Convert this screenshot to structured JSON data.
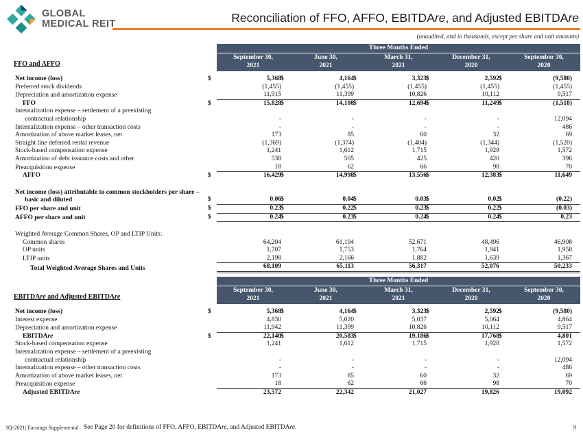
{
  "currency_symbol": "$",
  "colors": {
    "table_header_bg": "#46566c",
    "accent_rule": "#e87e2b",
    "logo_teal": "#2fa8a2",
    "logo_teal_dark": "#1f8f8a",
    "logo_navy": "#1c3e6e",
    "logo_orange": "#f4a335"
  },
  "header": {
    "logo_line1": "GLOBAL",
    "logo_line2": "MEDICAL REIT",
    "title": "Reconciliation of FFO, AFFO, EBITDAre, and Adjusted EBITDAre",
    "units_note": "(unaudited, and in thousands, except per share and unit amounts)"
  },
  "footer": {
    "left_label": "3Q-2021|  Earnings Supplemental",
    "note": "See Page 20 for definitions  of FFO, AFFO, EBITDAre,  and Adjusted EBITDAre.",
    "page_number": "9"
  },
  "tables": [
    {
      "section_label": "FFO and AFFO",
      "header_span": "Three Months Ended",
      "columns": [
        {
          "line1": "September 30,",
          "line2": "2021"
        },
        {
          "line1": "June 30,",
          "line2": "2021"
        },
        {
          "line1": "March 31,",
          "line2": "2021"
        },
        {
          "line1": "December 31,",
          "line2": "2020"
        },
        {
          "line1": "September 30,",
          "line2": "2020"
        }
      ],
      "rows": [
        {
          "label": "Net income (loss)",
          "bold": true,
          "dollar": true,
          "values": [
            "5,368",
            "4,164",
            "3,323",
            "2,592",
            "(9,580)"
          ]
        },
        {
          "label": "Preferred stock dividends",
          "values": [
            "(1,455)",
            "(1,455)",
            "(1,455)",
            "(1,455)",
            "(1,455)"
          ]
        },
        {
          "label": "Depreciation and amortization  expense",
          "rule": "under",
          "values": [
            "11,915",
            "11,399",
            "10,826",
            "10,112",
            "9,517"
          ]
        },
        {
          "label": "FFO",
          "bold": true,
          "indent": 1,
          "dollar": true,
          "values": [
            "15,828",
            "14,108",
            "12,694",
            "11,249",
            "(1,518)"
          ]
        },
        {
          "label": "Internalization  expense – settlement of a preexisting",
          "label2": "contractual relationship",
          "values": [
            "-",
            "-",
            "-",
            "-",
            "12,094"
          ]
        },
        {
          "label": "Internalization  expense – other transaction costs",
          "values": [
            "-",
            "-",
            "-",
            "-",
            "486"
          ]
        },
        {
          "label": "Amortization  of above market leases, net",
          "values": [
            "173",
            "85",
            "60",
            "32",
            "69"
          ]
        },
        {
          "label": "Straight line  deferred rental revenue",
          "values": [
            "(1,369)",
            "(1,374)",
            "(1,404)",
            "(1,344)",
            "(1,520)"
          ]
        },
        {
          "label": "Stock-based compensation  expense",
          "values": [
            "1,241",
            "1,612",
            "1,715",
            "1,928",
            "1,572"
          ]
        },
        {
          "label": "Amortization  of debt issuance costs and other",
          "values": [
            "538",
            "505",
            "425",
            "420",
            "396"
          ]
        },
        {
          "label": "Preacquisition  expense",
          "rule": "under",
          "values": [
            "18",
            "62",
            "66",
            "98",
            "70"
          ]
        },
        {
          "label": "AFFO",
          "bold": true,
          "indent": 1,
          "dollar": true,
          "values": [
            "16,429",
            "14,998",
            "13,556",
            "12,383",
            "11,649"
          ]
        },
        {
          "spacer": true,
          "h": 13
        },
        {
          "label": "Net income (loss) attributable to common stockholders per share –",
          "label2": "basic and diluted",
          "bold": true,
          "dollar": true,
          "rule": "under",
          "values": [
            "0.06",
            "0.04",
            "0.03",
            "0.02",
            "(0.22)"
          ]
        },
        {
          "label": "FFO per share and unit",
          "bold": true,
          "dollar": true,
          "rule": "under",
          "values": [
            "0.23",
            "0.22",
            "0.23",
            "0.22",
            "(0.03)"
          ]
        },
        {
          "label": "AFFO per share and unit",
          "bold": true,
          "dollar": true,
          "rule": "under",
          "values": [
            "0.24",
            "0.23",
            "0.24",
            "0.24",
            "0.23"
          ]
        },
        {
          "spacer": true,
          "h": 13
        },
        {
          "label": "Weighted Average Common Shares, OP and LTIP Units:"
        },
        {
          "label": "Common shares",
          "indent": 1,
          "values": [
            "64,204",
            "61,194",
            "52,671",
            "48,496",
            "46,908"
          ]
        },
        {
          "label": "OP units",
          "indent": 1,
          "values": [
            "1,707",
            "1,753",
            "1,764",
            "1,941",
            "1,958"
          ]
        },
        {
          "label": "LTIP units",
          "indent": 1,
          "rule": "under",
          "values": [
            "2,198",
            "2,166",
            "1,882",
            "1,639",
            "1,367"
          ]
        },
        {
          "label": "Total Weighted Average Shares and Units",
          "bold": true,
          "indent": 2,
          "rule": "double",
          "values": [
            "68,109",
            "65,113",
            "56,317",
            "52,076",
            "50,233"
          ]
        }
      ]
    },
    {
      "section_label": "EBITDAre and Adjusted EBITDAre",
      "header_span": "Three Months Ended",
      "columns": [
        {
          "line1": "September 30,",
          "line2": "2021"
        },
        {
          "line1": "June 30,",
          "line2": "2021"
        },
        {
          "line1": "March 31,",
          "line2": "2021"
        },
        {
          "line1": "December 31,",
          "line2": "2020"
        },
        {
          "line1": "September 30,",
          "line2": "2020"
        }
      ],
      "rows": [
        {
          "label": "Net income (loss)",
          "bold": true,
          "dollar": true,
          "values": [
            "5,368",
            "4,164",
            "3,323",
            "2,592",
            "(9,580)"
          ]
        },
        {
          "label": "Interest expense",
          "values": [
            "4,830",
            "5,020",
            "5,037",
            "5,064",
            "4,864"
          ]
        },
        {
          "label": "Depreciation and amortization  expense",
          "rule": "under",
          "values": [
            "11,942",
            "11,399",
            "10,826",
            "10,112",
            "9,517"
          ]
        },
        {
          "label": "EBITDAre",
          "bold": true,
          "indent": 1,
          "dollar": true,
          "values": [
            "22,140",
            "20,583",
            "19,186",
            "17,768",
            "4,801"
          ]
        },
        {
          "label": "Stock-based compensation expense",
          "values": [
            "1,241",
            "1,612",
            "1,715",
            "1,928",
            "1,572"
          ]
        },
        {
          "label": "Internalization  expense – settlement of a preexisting",
          "label2": "contractual relationship",
          "values": [
            "-",
            "-",
            "-",
            "-",
            "12,094"
          ]
        },
        {
          "label": "Internalization  expense – other transaction costs",
          "values": [
            "-",
            "-",
            "-",
            "-",
            "486"
          ]
        },
        {
          "label": "Amortization  of above market leases, net",
          "values": [
            "173",
            "85",
            "60",
            "32",
            "69"
          ]
        },
        {
          "label": "Preacquisition  expense",
          "rule": "under",
          "values": [
            "18",
            "62",
            "66",
            "98",
            "70"
          ]
        },
        {
          "label": "Adjusted EBITDAre",
          "bold": true,
          "indent": 1,
          "values": [
            "23,572",
            "22,342",
            "21,027",
            "19,826",
            "19,092"
          ]
        }
      ]
    }
  ]
}
